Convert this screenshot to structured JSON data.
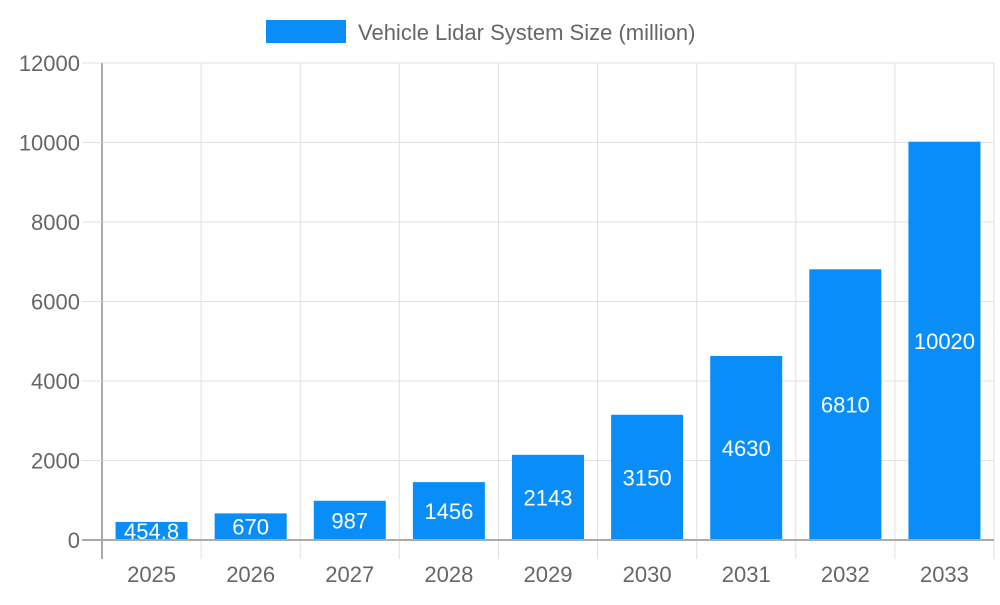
{
  "chart_data": {
    "type": "bar",
    "title": "",
    "xlabel": "",
    "ylabel": "",
    "categories": [
      "2025",
      "2026",
      "2027",
      "2028",
      "2029",
      "2030",
      "2031",
      "2032",
      "2033"
    ],
    "series": [
      {
        "name": "Vehicle Lidar System Size (million)",
        "values": [
          454.8,
          670,
          987,
          1456,
          2143,
          3150,
          4630,
          6810,
          10020
        ],
        "data_labels": [
          "454.8",
          "670",
          "987",
          "1456",
          "2143",
          "3150",
          "4630",
          "6810",
          "10020"
        ],
        "color": "#098df9"
      }
    ],
    "ylim": [
      0,
      12000
    ],
    "yticks": [
      "0",
      "2000",
      "4000",
      "6000",
      "8000",
      "10000",
      "12000"
    ],
    "grid": true,
    "legend": "top"
  }
}
